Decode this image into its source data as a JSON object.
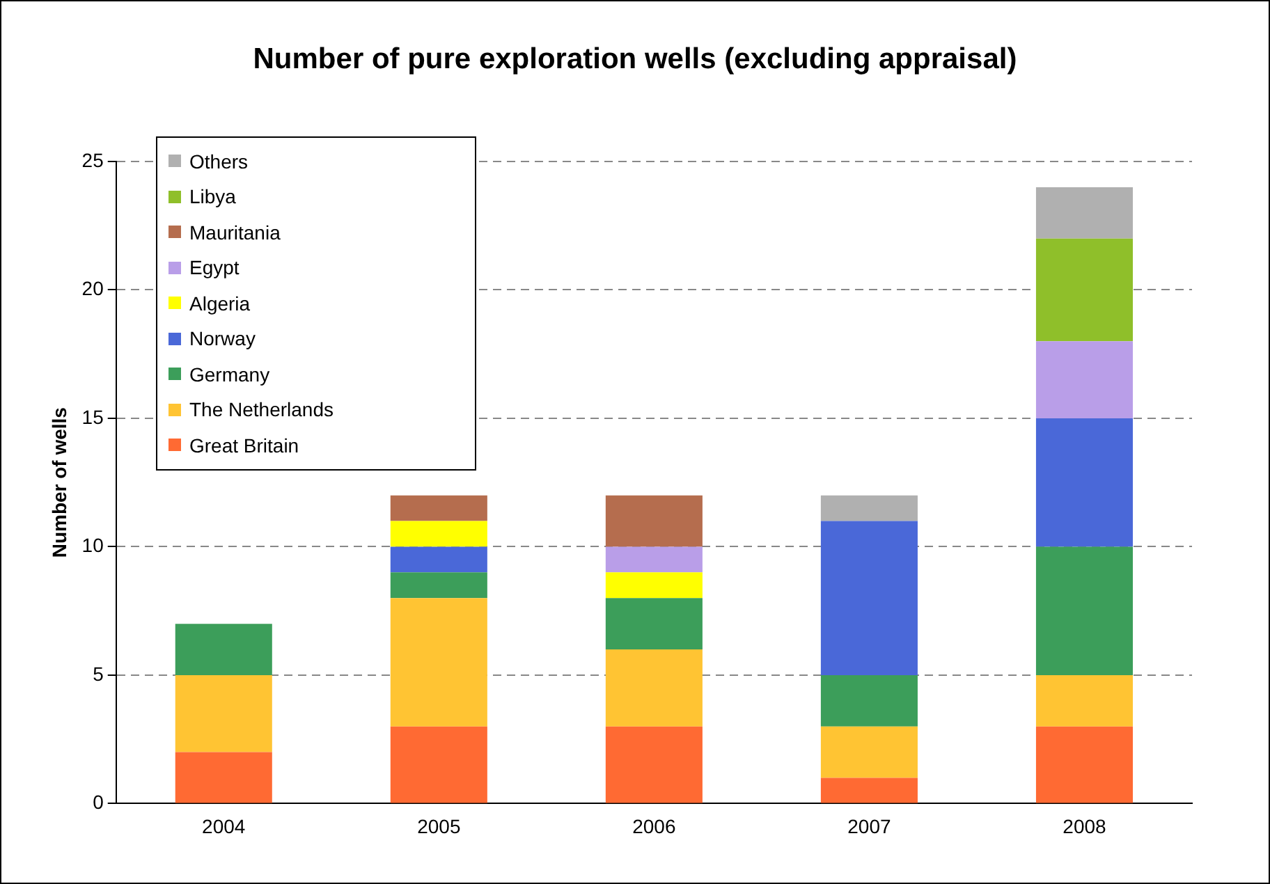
{
  "chart_data": {
    "type": "bar",
    "title": "Number of pure exploration wells (excluding appraisal)",
    "ylabel": "Number of wells",
    "categories": [
      "2004",
      "2005",
      "2006",
      "2007",
      "2008"
    ],
    "stacked": true,
    "ylim": [
      0,
      25
    ],
    "yticks": [
      0,
      5,
      10,
      15,
      20,
      25
    ],
    "grid": "y",
    "legend": "top left",
    "series": [
      {
        "name": "Great Britain",
        "color": "#ff6a33",
        "values": [
          2,
          3,
          3,
          1,
          3
        ]
      },
      {
        "name": "The Netherlands",
        "color": "#ffc433",
        "values": [
          3,
          5,
          3,
          2,
          2
        ]
      },
      {
        "name": "Germany",
        "color": "#3c9e5a",
        "values": [
          2,
          1,
          2,
          2,
          5
        ]
      },
      {
        "name": "Norway",
        "color": "#4a68d8",
        "values": [
          0,
          1,
          0,
          6,
          5
        ]
      },
      {
        "name": "Algeria",
        "color": "#ffff00",
        "values": [
          0,
          1,
          1,
          0,
          0
        ]
      },
      {
        "name": "Egypt",
        "color": "#b99ee8",
        "values": [
          0,
          0,
          1,
          0,
          3
        ]
      },
      {
        "name": "Mauritania",
        "color": "#b56d4e",
        "values": [
          0,
          1,
          2,
          0,
          0
        ]
      },
      {
        "name": "Libya",
        "color": "#8fbf2a",
        "values": [
          0,
          0,
          0,
          0,
          4
        ]
      },
      {
        "name": "Others",
        "color": "#b0b0b0",
        "values": [
          0,
          0,
          0,
          1,
          2
        ]
      }
    ]
  }
}
